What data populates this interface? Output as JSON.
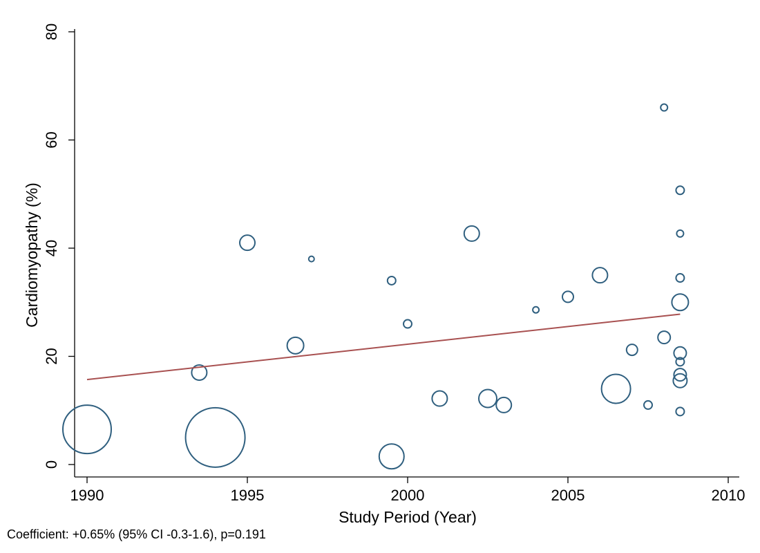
{
  "chart_data": {
    "type": "scatter",
    "title": "",
    "xlabel": "Study Period (Year)",
    "ylabel": "Cardiomyopathy (%)",
    "xlim": [
      1990,
      2010
    ],
    "ylim": [
      0,
      80
    ],
    "xticks": [
      "1990",
      "1995",
      "2000",
      "2005",
      "2010"
    ],
    "yticks": [
      "0",
      "20",
      "40",
      "60",
      "80"
    ],
    "grid": false,
    "legend": "none",
    "marker_style": "hollow circles sized by study weight",
    "point_color": "#2f5f7f",
    "fit_line_color": "#a85050",
    "points": [
      {
        "x": 1990.0,
        "y": 6.5,
        "weight": 35
      },
      {
        "x": 1993.5,
        "y": 17.0,
        "weight": 11
      },
      {
        "x": 1994.0,
        "y": 5.0,
        "weight": 43
      },
      {
        "x": 1995.0,
        "y": 41.0,
        "weight": 11
      },
      {
        "x": 1996.5,
        "y": 22.0,
        "weight": 12
      },
      {
        "x": 1997.0,
        "y": 38.0,
        "weight": 4
      },
      {
        "x": 1999.5,
        "y": 34.0,
        "weight": 6
      },
      {
        "x": 1999.5,
        "y": 1.5,
        "weight": 18
      },
      {
        "x": 2000.0,
        "y": 26.0,
        "weight": 6
      },
      {
        "x": 2001.0,
        "y": 12.2,
        "weight": 11
      },
      {
        "x": 2002.0,
        "y": 42.7,
        "weight": 11
      },
      {
        "x": 2002.5,
        "y": 12.2,
        "weight": 13
      },
      {
        "x": 2003.0,
        "y": 11.0,
        "weight": 11
      },
      {
        "x": 2004.0,
        "y": 28.6,
        "weight": 4.5
      },
      {
        "x": 2005.0,
        "y": 31.0,
        "weight": 8
      },
      {
        "x": 2006.0,
        "y": 35.0,
        "weight": 11
      },
      {
        "x": 2006.5,
        "y": 14.0,
        "weight": 21
      },
      {
        "x": 2007.0,
        "y": 21.2,
        "weight": 8
      },
      {
        "x": 2007.5,
        "y": 11.0,
        "weight": 6
      },
      {
        "x": 2008.0,
        "y": 66.0,
        "weight": 5
      },
      {
        "x": 2008.0,
        "y": 23.5,
        "weight": 9
      },
      {
        "x": 2008.5,
        "y": 50.7,
        "weight": 6
      },
      {
        "x": 2008.5,
        "y": 42.7,
        "weight": 5
      },
      {
        "x": 2008.5,
        "y": 34.5,
        "weight": 6
      },
      {
        "x": 2008.5,
        "y": 30.0,
        "weight": 12
      },
      {
        "x": 2008.5,
        "y": 20.6,
        "weight": 9
      },
      {
        "x": 2008.5,
        "y": 19.0,
        "weight": 6
      },
      {
        "x": 2008.5,
        "y": 16.6,
        "weight": 9
      },
      {
        "x": 2008.5,
        "y": 15.5,
        "weight": 10
      },
      {
        "x": 2008.5,
        "y": 9.8,
        "weight": 6
      }
    ],
    "fit_line": {
      "x": [
        1990,
        2008.5
      ],
      "y": [
        15.7,
        27.8
      ]
    }
  },
  "footnote": "Coefficient: +0.65% (95% CI -0.3-1.6), p=0.191"
}
